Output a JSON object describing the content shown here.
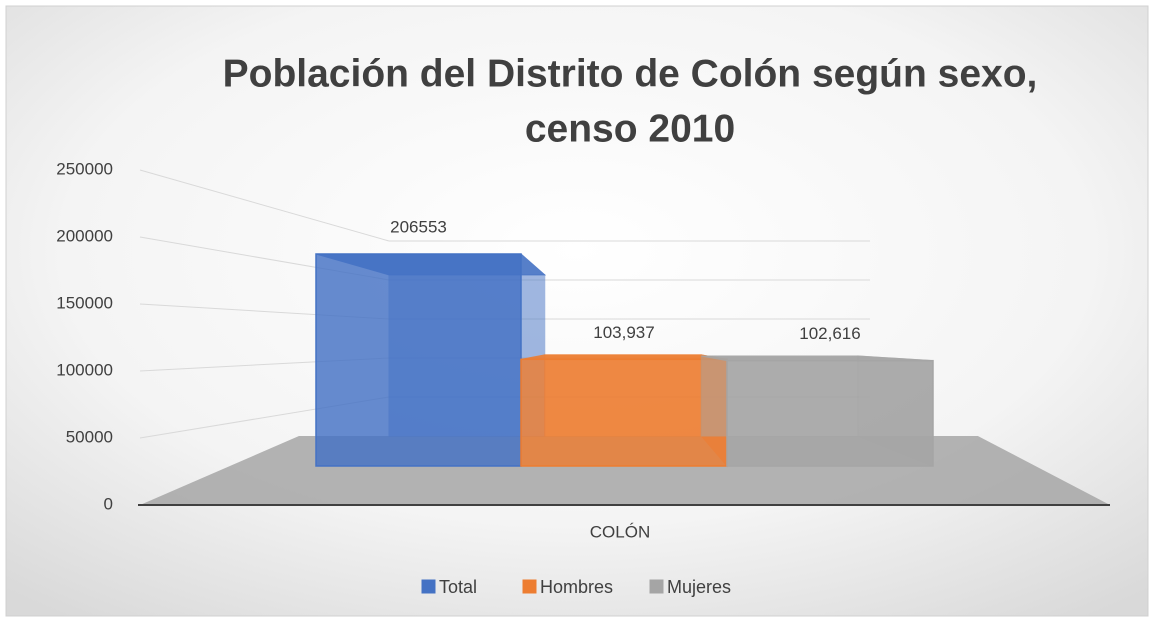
{
  "chart_data": {
    "type": "bar3d",
    "title": [
      "Población del Distrito de Colón según sexo,",
      "censo 2010"
    ],
    "categories": [
      "COLÓN"
    ],
    "series": [
      {
        "name": "Total",
        "color": "#4472c4",
        "values": [
          206553
        ]
      },
      {
        "name": "Hombres",
        "color": "#ed7d31",
        "values": [
          103937
        ],
        "value_labels": [
          "103,937"
        ]
      },
      {
        "name": "Mujeres",
        "color": "#a5a5a5",
        "values": [
          102616
        ],
        "value_labels": [
          "102,616"
        ]
      }
    ],
    "ylim": [
      0,
      250000
    ],
    "yticks": [
      0,
      50000,
      100000,
      150000,
      200000,
      250000
    ],
    "grid": true,
    "legend": "bottom"
  }
}
